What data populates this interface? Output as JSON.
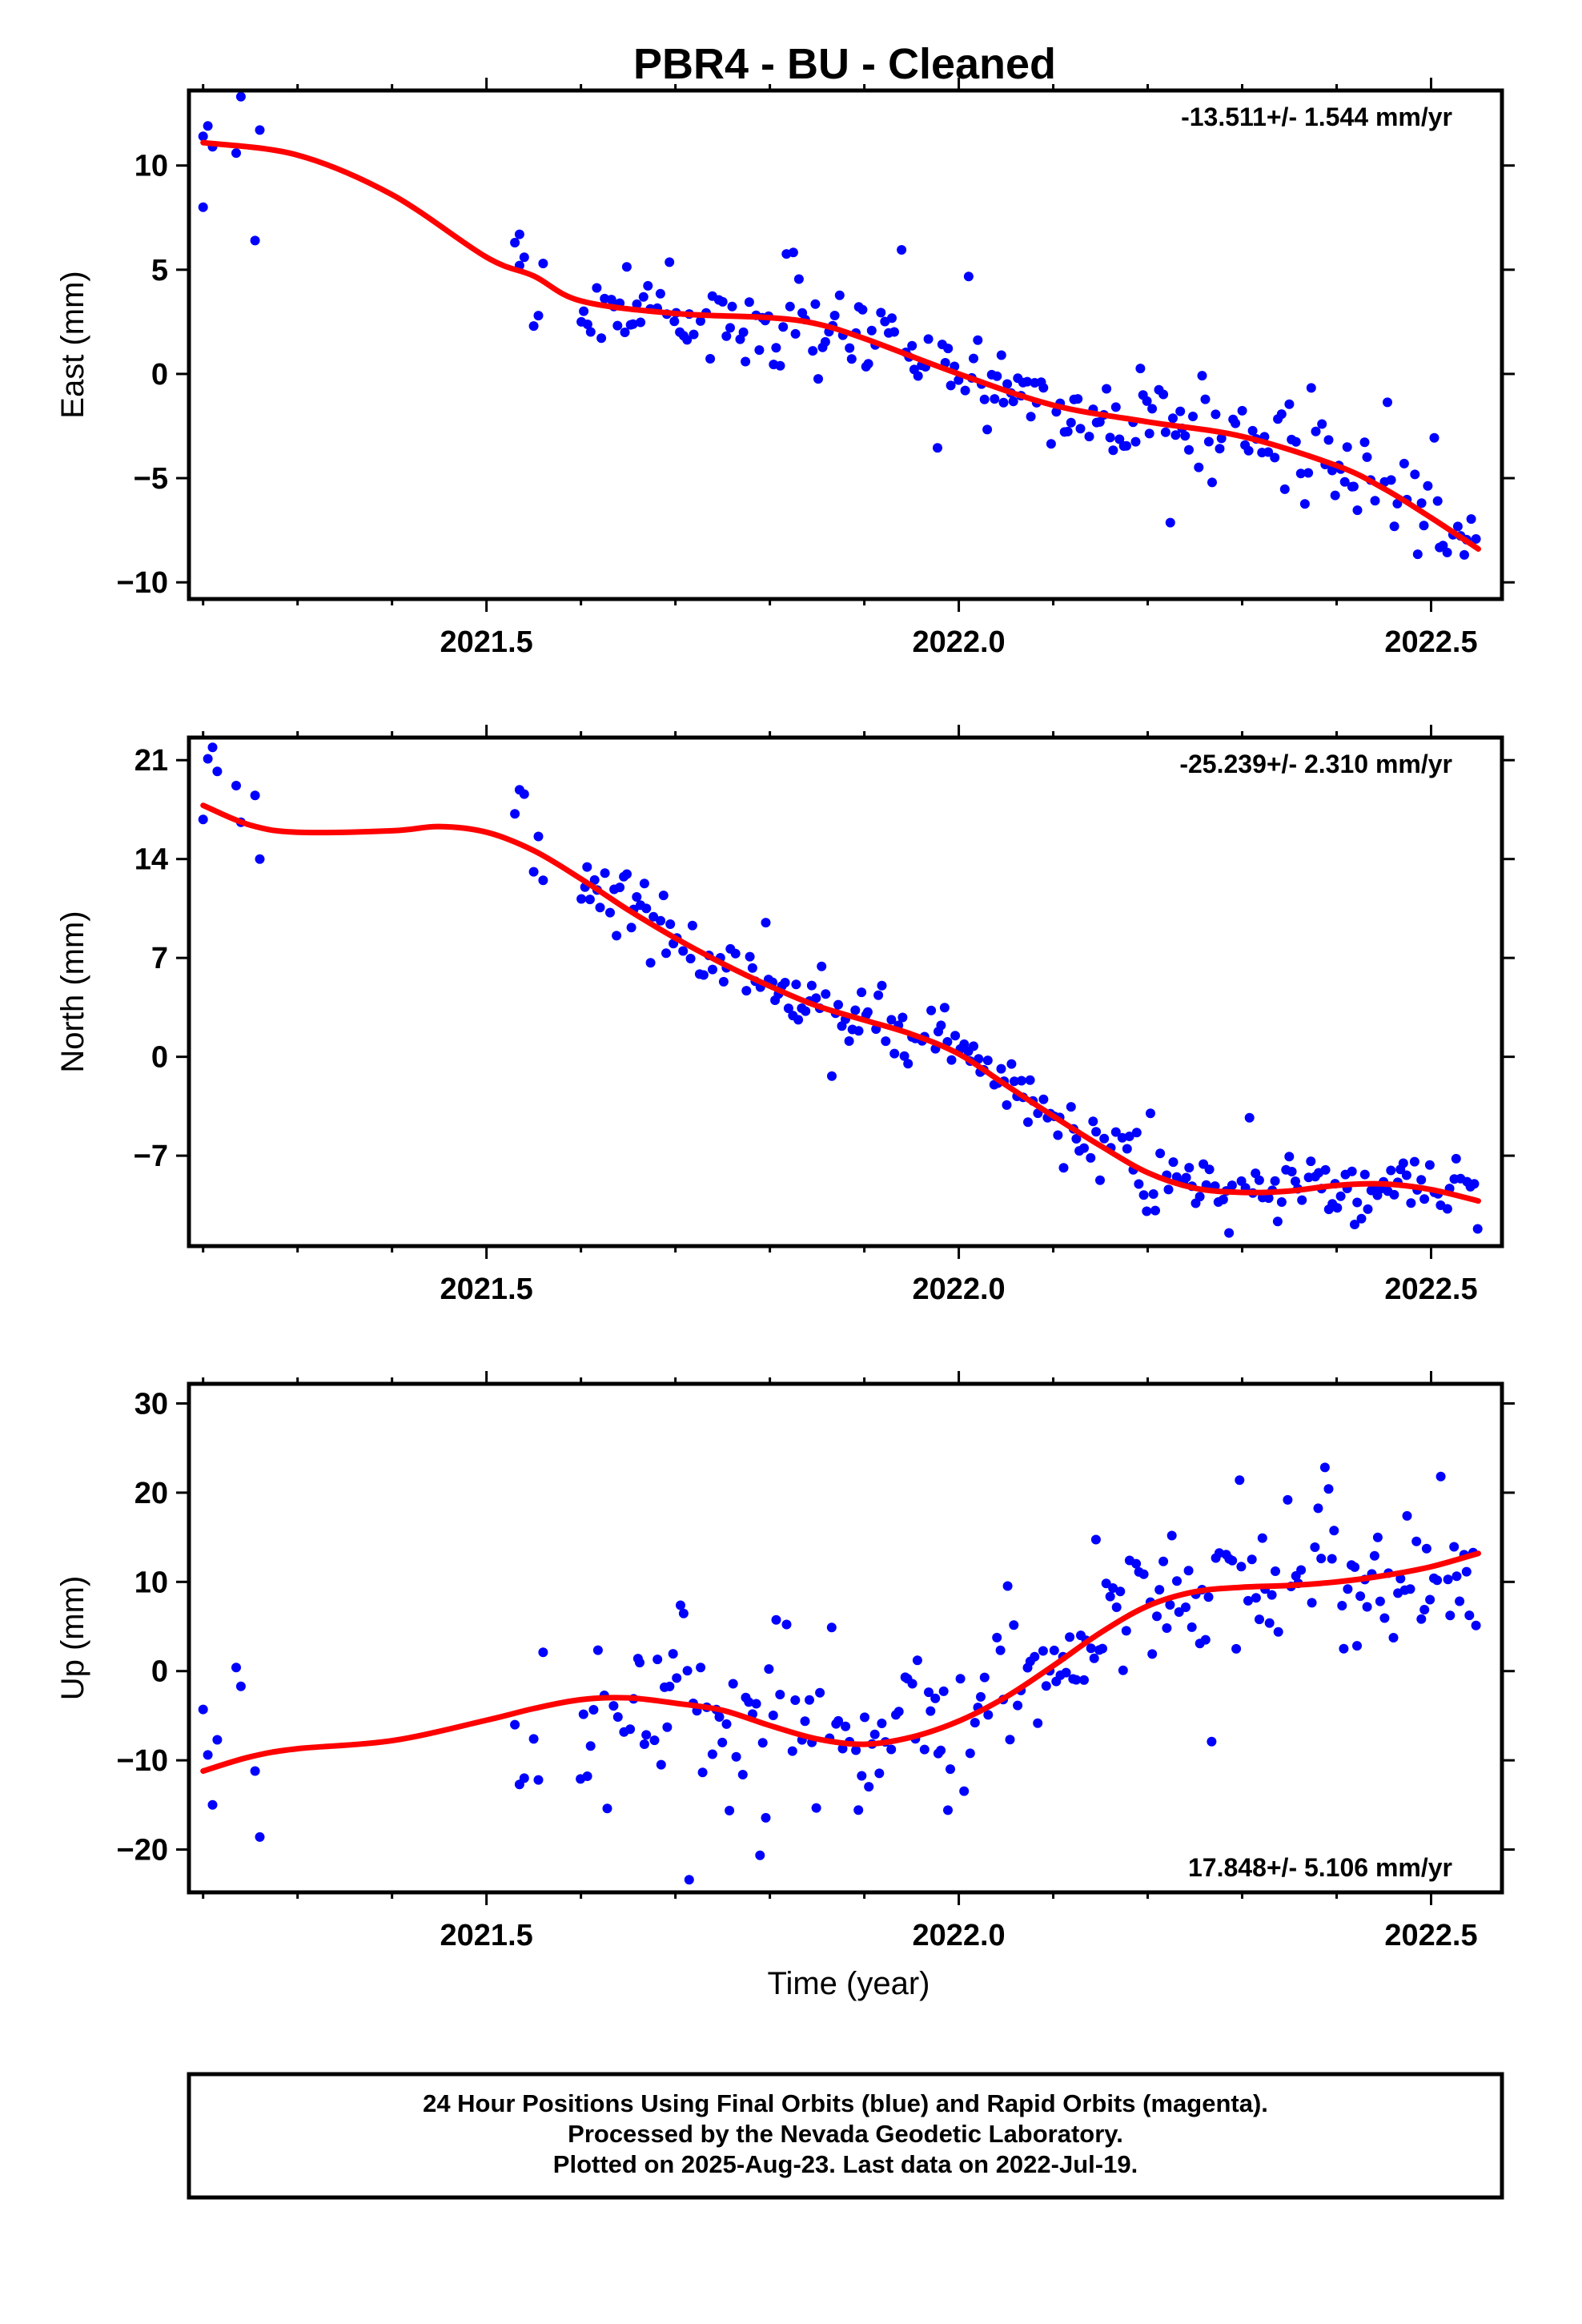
{
  "title": "PBR4  - BU - Cleaned",
  "xlabel": "Time (year)",
  "footer": {
    "line1": "24 Hour Positions Using Final Orbits (blue) and Rapid Orbits (magenta).",
    "line2": "Processed by the Nevada Geodetic Laboratory.",
    "line3": "Plotted on 2025-Aug-23. Last data on 2022-Jul-19."
  },
  "colors": {
    "points": "#0000ff",
    "fit": "#ff0000",
    "frame": "#000000"
  },
  "chart_data": [
    {
      "type": "scatter",
      "ylabel": "East (mm)",
      "rate_text": "-13.511+/- 1.544 mm/yr",
      "rate_position": "top-right",
      "xlim": [
        2021.185,
        2022.575
      ],
      "ylim": [
        -10.8,
        13.6
      ],
      "xticks": [
        "2021.5",
        "2022.0",
        "2022.5"
      ],
      "yticks": [
        10,
        5,
        0,
        -5,
        -10
      ],
      "ytick_labels": [
        "10",
        "5",
        "0",
        "−5",
        "−10"
      ],
      "trend_mm_per_yr": -13.511,
      "fit": [
        [
          2021.2,
          11.1
        ],
        [
          2021.3,
          10.5
        ],
        [
          2021.4,
          8.6
        ],
        [
          2021.5,
          5.6
        ],
        [
          2021.55,
          4.7
        ],
        [
          2021.6,
          3.5
        ],
        [
          2021.7,
          2.9
        ],
        [
          2021.8,
          2.7
        ],
        [
          2021.85,
          2.4
        ],
        [
          2021.9,
          1.7
        ],
        [
          2022.0,
          0.0
        ],
        [
          2022.1,
          -1.5
        ],
        [
          2022.2,
          -2.3
        ],
        [
          2022.3,
          -3.0
        ],
        [
          2022.4,
          -4.4
        ],
        [
          2022.45,
          -5.5
        ],
        [
          2022.5,
          -6.9
        ],
        [
          2022.55,
          -8.4
        ]
      ],
      "points": [
        [
          2021.2,
          8.0
        ],
        [
          2021.2,
          11.4
        ],
        [
          2021.205,
          11.9
        ],
        [
          2021.21,
          10.9
        ],
        [
          2021.235,
          10.6
        ],
        [
          2021.24,
          13.3
        ],
        [
          2021.255,
          6.4
        ],
        [
          2021.26,
          11.7
        ],
        [
          2021.53,
          6.3
        ],
        [
          2021.535,
          6.7
        ],
        [
          2021.535,
          5.2
        ],
        [
          2021.54,
          5.6
        ],
        [
          2021.55,
          2.3
        ],
        [
          2021.555,
          2.8
        ],
        [
          2021.56,
          5.3
        ]
      ],
      "scatter_model": {
        "seed": 11,
        "x_from": 2021.6,
        "x_to": 2022.55,
        "step": 0.0035,
        "sigma": 1.05,
        "outlier_rate": 0.06
      }
    },
    {
      "type": "scatter",
      "ylabel": "North (mm)",
      "rate_text": "-25.239+/- 2.310 mm/yr",
      "rate_position": "top-right",
      "xlim": [
        2021.185,
        2022.575
      ],
      "ylim": [
        -13.4,
        22.6
      ],
      "xticks": [
        "2021.5",
        "2022.0",
        "2022.5"
      ],
      "yticks": [
        21,
        14,
        7,
        0,
        -7
      ],
      "ytick_labels": [
        "21",
        "14",
        "7",
        "0",
        "−7"
      ],
      "trend_mm_per_yr": -25.239,
      "fit": [
        [
          2021.2,
          17.8
        ],
        [
          2021.25,
          16.4
        ],
        [
          2021.3,
          15.9
        ],
        [
          2021.4,
          16.0
        ],
        [
          2021.45,
          16.3
        ],
        [
          2021.5,
          15.9
        ],
        [
          2021.55,
          14.6
        ],
        [
          2021.6,
          12.6
        ],
        [
          2021.65,
          10.4
        ],
        [
          2021.7,
          8.4
        ],
        [
          2021.75,
          6.6
        ],
        [
          2021.8,
          5.0
        ],
        [
          2021.85,
          3.6
        ],
        [
          2021.9,
          2.6
        ],
        [
          2021.95,
          1.6
        ],
        [
          2022.0,
          0.2
        ],
        [
          2022.05,
          -2.0
        ],
        [
          2022.1,
          -4.2
        ],
        [
          2022.15,
          -6.3
        ],
        [
          2022.2,
          -8.2
        ],
        [
          2022.25,
          -9.3
        ],
        [
          2022.3,
          -9.6
        ],
        [
          2022.35,
          -9.5
        ],
        [
          2022.4,
          -9.1
        ],
        [
          2022.45,
          -9.0
        ],
        [
          2022.5,
          -9.4
        ],
        [
          2022.55,
          -10.2
        ]
      ],
      "points": [
        [
          2021.2,
          16.8
        ],
        [
          2021.205,
          21.1
        ],
        [
          2021.21,
          21.9
        ],
        [
          2021.215,
          20.2
        ],
        [
          2021.235,
          19.2
        ],
        [
          2021.24,
          16.6
        ],
        [
          2021.255,
          18.5
        ],
        [
          2021.26,
          14.0
        ],
        [
          2021.53,
          17.2
        ],
        [
          2021.535,
          18.9
        ],
        [
          2021.54,
          18.6
        ],
        [
          2021.55,
          13.1
        ],
        [
          2021.555,
          15.6
        ],
        [
          2021.56,
          12.5
        ]
      ],
      "scatter_model": {
        "seed": 23,
        "x_from": 2021.6,
        "x_to": 2022.55,
        "step": 0.0035,
        "sigma": 1.1,
        "outlier_rate": 0.04
      }
    },
    {
      "type": "scatter",
      "ylabel": "Up (mm)",
      "rate_text": "17.848+/- 5.106 mm/yr",
      "rate_position": "bottom-right",
      "xlim": [
        2021.185,
        2022.575
      ],
      "ylim": [
        -24.8,
        32.2
      ],
      "xticks": [
        "2021.5",
        "2022.0",
        "2022.5"
      ],
      "yticks": [
        30,
        20,
        10,
        0,
        -10,
        -20
      ],
      "ytick_labels": [
        "30",
        "20",
        "10",
        "0",
        "−10",
        "−20"
      ],
      "trend_mm_per_yr": 17.848,
      "fit": [
        [
          2021.2,
          -11.2
        ],
        [
          2021.25,
          -9.6
        ],
        [
          2021.3,
          -8.7
        ],
        [
          2021.4,
          -7.8
        ],
        [
          2021.5,
          -5.5
        ],
        [
          2021.55,
          -4.2
        ],
        [
          2021.6,
          -3.2
        ],
        [
          2021.65,
          -3.0
        ],
        [
          2021.7,
          -3.6
        ],
        [
          2021.75,
          -4.4
        ],
        [
          2021.8,
          -6.1
        ],
        [
          2021.85,
          -7.6
        ],
        [
          2021.9,
          -8.2
        ],
        [
          2021.95,
          -7.4
        ],
        [
          2022.0,
          -5.6
        ],
        [
          2022.05,
          -2.9
        ],
        [
          2022.1,
          0.6
        ],
        [
          2022.15,
          4.3
        ],
        [
          2022.2,
          7.3
        ],
        [
          2022.25,
          8.9
        ],
        [
          2022.3,
          9.4
        ],
        [
          2022.35,
          9.6
        ],
        [
          2022.4,
          10.0
        ],
        [
          2022.45,
          10.7
        ],
        [
          2022.5,
          11.7
        ],
        [
          2022.55,
          13.2
        ]
      ],
      "points": [
        [
          2021.2,
          -4.3
        ],
        [
          2021.205,
          -9.4
        ],
        [
          2021.21,
          -15.0
        ],
        [
          2021.215,
          -7.7
        ],
        [
          2021.235,
          0.4
        ],
        [
          2021.24,
          -1.7
        ],
        [
          2021.255,
          -11.2
        ],
        [
          2021.26,
          -18.6
        ],
        [
          2021.53,
          -6.0
        ],
        [
          2021.535,
          -12.7
        ],
        [
          2021.54,
          -12.0
        ],
        [
          2021.55,
          -7.6
        ],
        [
          2021.555,
          -12.2
        ],
        [
          2021.56,
          2.1
        ]
      ],
      "scatter_model": {
        "seed": 37,
        "x_from": 2021.6,
        "x_to": 2022.55,
        "step": 0.0035,
        "sigma": 4.2,
        "outlier_rate": 0.06
      }
    }
  ]
}
